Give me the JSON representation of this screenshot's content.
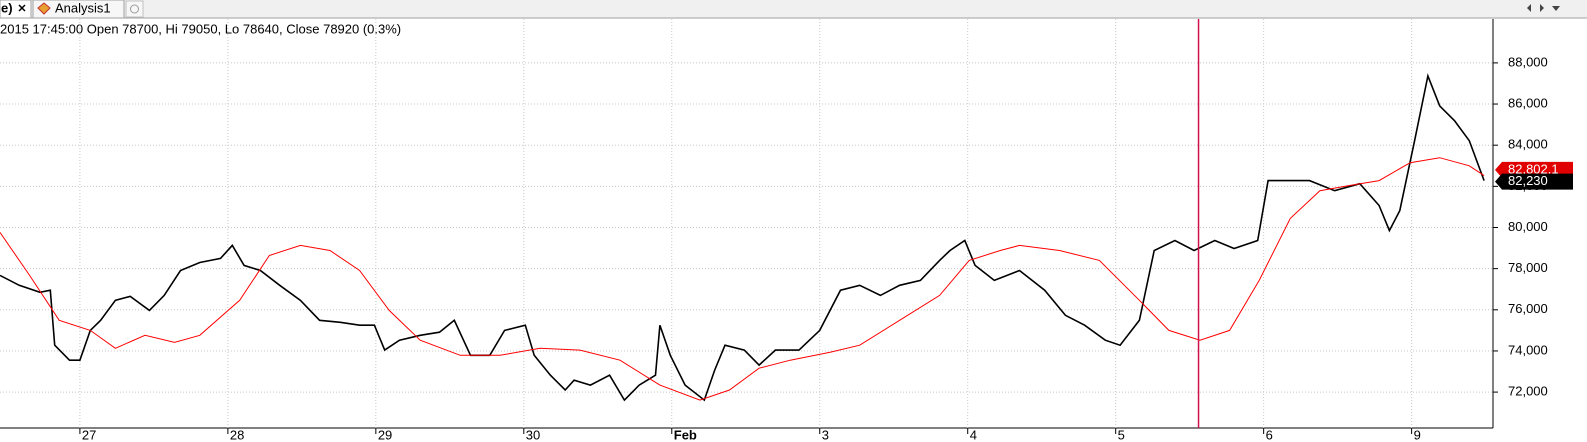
{
  "ui": {
    "tabs": [
      "e)",
      "Analysis1"
    ]
  },
  "chart_data": {
    "type": "line",
    "title": "2015 17:45:00 Open 78700, Hi 79050, Lo 78640, Close 78920 (0.3%)",
    "xlim": [
      0.46,
      10.55
    ],
    "ylim": [
      70255,
      90133
    ],
    "xticks": [
      {
        "value": 1,
        "label": "27"
      },
      {
        "value": 2,
        "label": "28"
      },
      {
        "value": 3,
        "label": "29"
      },
      {
        "value": 4,
        "label": "30"
      },
      {
        "value": 5,
        "label": "Feb",
        "bold": true
      },
      {
        "value": 6,
        "label": "3"
      },
      {
        "value": 7,
        "label": "4"
      },
      {
        "value": 8,
        "label": "5"
      },
      {
        "value": 9,
        "label": "6"
      },
      {
        "value": 10,
        "label": "9"
      }
    ],
    "yticks": [
      {
        "value": 72000,
        "label": "72,000"
      },
      {
        "value": 74000,
        "label": "74,000"
      },
      {
        "value": 76000,
        "label": "76,000"
      },
      {
        "value": 78000,
        "label": "78,000"
      },
      {
        "value": 80000,
        "label": "80,000"
      },
      {
        "value": 82000,
        "label": "82,000"
      },
      {
        "value": 84000,
        "label": "84,000"
      },
      {
        "value": 86000,
        "label": "86,000"
      },
      {
        "value": 88000,
        "label": "88,000"
      }
    ],
    "grid": true,
    "cursor_x": 8.56,
    "cursor_color": "#d0104c",
    "series": [
      {
        "color": "#000000",
        "width": 1.6,
        "x": [
          0.46,
          0.59,
          0.73,
          0.8,
          0.83,
          0.93,
          1.0,
          1.07,
          1.14,
          1.24,
          1.34,
          1.47,
          1.57,
          1.68,
          1.81,
          1.95,
          2.03,
          2.11,
          2.22,
          2.35,
          2.49,
          2.62,
          2.76,
          2.89,
          2.99,
          3.06,
          3.16,
          3.3,
          3.43,
          3.53,
          3.64,
          3.77,
          3.87,
          4.01,
          4.07,
          4.18,
          4.28,
          4.34,
          4.45,
          4.58,
          4.68,
          4.78,
          4.89,
          4.92,
          4.99,
          5.09,
          5.22,
          5.29,
          5.36,
          5.49,
          5.59,
          5.7,
          5.86,
          6.0,
          6.14,
          6.27,
          6.41,
          6.54,
          6.68,
          6.81,
          6.88,
          6.98,
          7.05,
          7.18,
          7.35,
          7.52,
          7.66,
          7.79,
          7.93,
          8.03,
          8.16,
          8.26,
          8.4,
          8.53,
          8.67,
          8.8,
          8.96,
          9.03,
          9.18,
          9.31,
          9.48,
          9.65,
          9.78,
          9.85,
          9.92,
          10.02,
          10.11,
          10.19,
          10.29,
          10.39,
          10.49
        ],
        "values": [
          77670,
          77190,
          76850,
          76950,
          74280,
          73550,
          73550,
          75000,
          75490,
          76460,
          76650,
          75970,
          76700,
          77910,
          78300,
          78500,
          79130,
          78160,
          77910,
          77190,
          76460,
          75490,
          75390,
          75250,
          75250,
          74040,
          74520,
          74760,
          74910,
          75490,
          73790,
          73790,
          75000,
          75250,
          73790,
          72820,
          72100,
          72580,
          72340,
          72820,
          71610,
          72340,
          72820,
          75250,
          73790,
          72340,
          71610,
          73070,
          74280,
          74040,
          73310,
          74040,
          74040,
          75000,
          76950,
          77190,
          76700,
          77190,
          77430,
          78400,
          78880,
          79370,
          78160,
          77430,
          77910,
          76950,
          75730,
          75250,
          74520,
          74280,
          75490,
          78880,
          79370,
          78880,
          79370,
          78980,
          79370,
          82280,
          82280,
          82280,
          81790,
          82130,
          81070,
          79850,
          80820,
          84220,
          87370,
          85910,
          85190,
          84220,
          82280
        ]
      },
      {
        "color": "#ff0000",
        "width": 1,
        "x": [
          0.46,
          0.66,
          0.86,
          1.07,
          1.24,
          1.44,
          1.64,
          1.81,
          2.08,
          2.28,
          2.49,
          2.69,
          2.89,
          3.09,
          3.3,
          3.57,
          3.84,
          4.11,
          4.38,
          4.65,
          4.92,
          5.19,
          5.39,
          5.59,
          5.8,
          6.07,
          6.27,
          6.54,
          6.81,
          7.01,
          7.22,
          7.35,
          7.62,
          7.89,
          8.16,
          8.36,
          8.57,
          8.77,
          8.97,
          9.18,
          9.38,
          9.58,
          9.78,
          9.99,
          10.19,
          10.39,
          10.49
        ],
        "values": [
          79760,
          77670,
          75490,
          75000,
          74130,
          74760,
          74420,
          74760,
          76460,
          78640,
          79130,
          78880,
          77910,
          75970,
          74520,
          73790,
          73790,
          74130,
          74040,
          73550,
          72340,
          71610,
          72100,
          73160,
          73550,
          73940,
          74280,
          75490,
          76700,
          78400,
          78880,
          79130,
          78880,
          78400,
          76460,
          75000,
          74520,
          75000,
          77430,
          80440,
          81790,
          82040,
          82280,
          83150,
          83390,
          83000,
          82520
        ]
      }
    ],
    "markers": [
      {
        "value": 82802.1,
        "label": "82,802.1",
        "color": "#e00000"
      },
      {
        "value": 82230,
        "label": "82,230",
        "color": "#000000"
      }
    ]
  }
}
